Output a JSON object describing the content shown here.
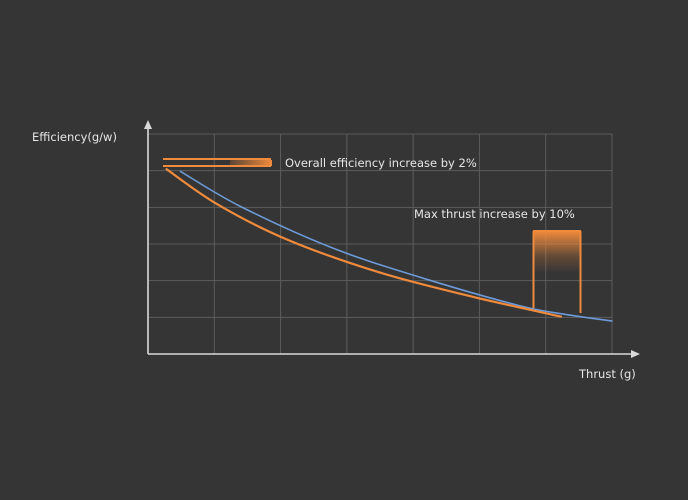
{
  "chart_data": {
    "type": "line",
    "xlabel": "Thrust (g)",
    "ylabel": "Efficiency(g/w)",
    "xlim": [
      0,
      100
    ],
    "ylim": [
      0,
      100
    ],
    "grid": true,
    "series": [
      {
        "color": "#6d9ad8",
        "x": [
          7,
          20,
          40,
          60,
          80,
          90,
          100
        ],
        "y": [
          83,
          67,
          48,
          34,
          22,
          18,
          15
        ]
      },
      {
        "color": "#f08a3c",
        "x": [
          4,
          15,
          30,
          50,
          70,
          89
        ],
        "y": [
          84,
          68,
          52,
          37,
          26,
          17
        ]
      }
    ],
    "annotations": [
      {
        "text": "Overall efficiency increase by 2%"
      },
      {
        "text": "Max thrust increase by 10%"
      }
    ],
    "colors": {
      "background": "#353535",
      "grid": "#5c5c5c",
      "axis": "#d9d9d9",
      "highlight": "#f08a3c"
    }
  }
}
